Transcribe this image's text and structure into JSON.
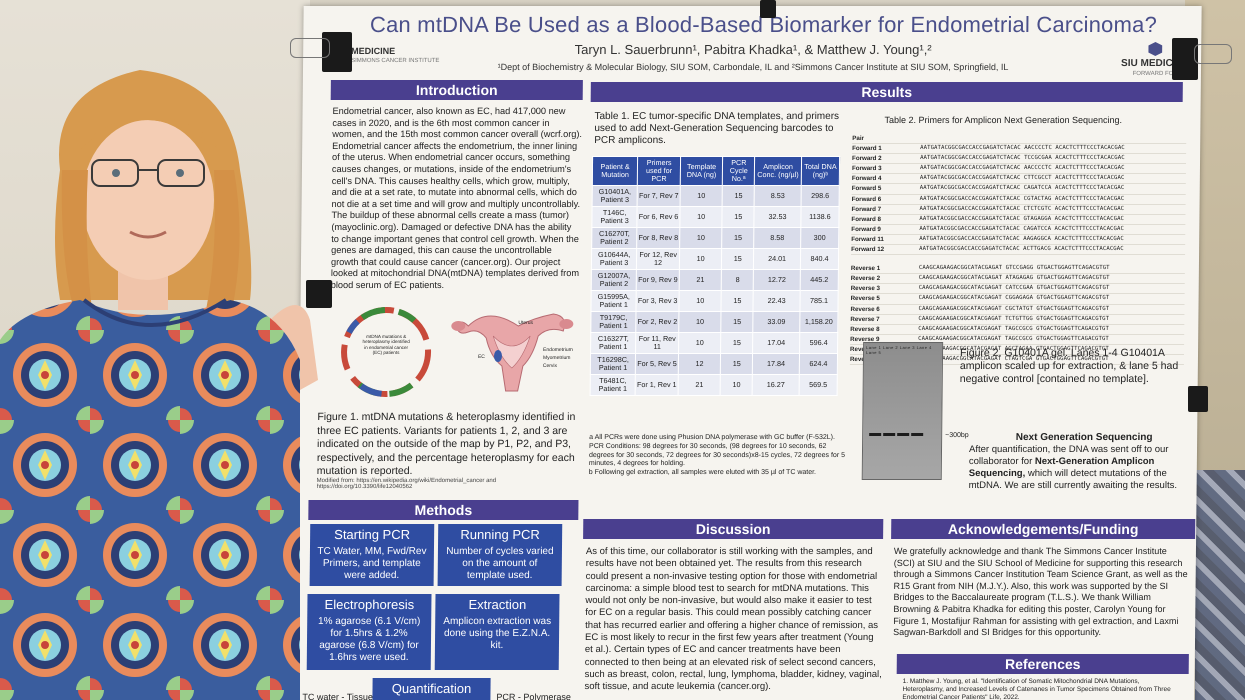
{
  "poster": {
    "title": "Can mtDNA Be Used as a Blood-Based Biomarker for Endometrial Carcinoma?",
    "authors": "Taryn L. Sauerbrunn¹, Pabitra Khadka¹, & Matthew J. Young¹,²",
    "affiliation": "¹Dept of Biochemistry & Molecular Biology, SIU SOM, Carbondale, IL and ²Simmons Cancer Institute at SIU SOM, Springfield, IL",
    "logo_left": "MEDICINE",
    "logo_left_sub": "SIMMONS CANCER INSTITUTE",
    "logo_right": "SIU MEDICINE",
    "logo_right_sub": "FORWARD FOR"
  },
  "introduction": {
    "heading": "Introduction",
    "text": "Endometrial cancer, also known as EC, had 417,000 new cases in 2020, and is the 6th most common cancer in women, and the 15th most common cancer overall (wcrf.org). Endometrial cancer affects the endometrium, the inner lining of the uterus. When endometrial cancer occurs, something causes changes, or mutations, inside of the endometrium's cell's DNA. This causes healthy cells, which grow, multiply, and die at a set rate, to mutate into abnormal cells, which do not die at a set time and will grow and multiply uncontrollably. The buildup of these abnormal cells create a mass (tumor) (mayoclinic.org). Damaged or defective DNA has the ability to change important genes that control cell growth. When the genes are damaged, this can cause the uncontrollable growth that could cause cancer (cancer.org). Our project looked at mitochondrial DNA(mtDNA) templates derived from blood serum of EC patients."
  },
  "figure1": {
    "map_center": "mtDNA mutations & heteroplasmy identified in endometrial cancer (EC) patients",
    "uterus_labels": [
      "Uterus",
      "EC",
      "Endometrium",
      "Myometrium",
      "Cervix"
    ],
    "caption": "Figure 1. mtDNA mutations & heteroplasmy identified in three EC patients. Variants for patients 1, 2, and 3 are indicated on the outside of the map by P1, P2, and P3, respectively, and the percentage heteroplasmy for each mutation is reported.",
    "modified": "Modified from: https://en.wikipedia.org/wiki/Endometrial_cancer and https://doi.org/10.3390/life12040562"
  },
  "methods": {
    "heading": "Methods",
    "boxes": [
      {
        "title": "Starting PCR",
        "body": "TC Water, MM, Fwd/Rev Primers, and template were added."
      },
      {
        "title": "Running PCR",
        "body": "Number of cycles varied on the amount of template used."
      },
      {
        "title": "Electrophoresis",
        "body": "1% agarose (6.1 V/cm) for 1.5hrs & 1.2% agarose (6.8 V/cm) for 1.6hrs were used."
      },
      {
        "title": "Extraction",
        "body": "Amplicon extraction was done using the E.Z.N.A. kit."
      },
      {
        "title": "Quantification",
        "body": ""
      }
    ],
    "foot_left": "TC water - Tissue",
    "foot_right": "PCR - Polymerase"
  },
  "results": {
    "heading": "Results",
    "table1_caption": "Table 1. EC tumor-specific DNA templates, and primers used to add Next-Generation Sequencing barcodes to PCR amplicons.",
    "table1_headers": [
      "Patient & Mutation",
      "Primers used for PCR",
      "Template DNA (ng)",
      "PCR Cycle No.ª",
      "Amplicon Conc. (ng/µl)",
      "Total DNA (ng)ᵇ"
    ],
    "table1_rows": [
      [
        "G10401A, Patient 3",
        "For 7, Rev 7",
        "10",
        "15",
        "8.53",
        "298.6"
      ],
      [
        "T146C, Patient 3",
        "For 6, Rev 6",
        "10",
        "15",
        "32.53",
        "1138.6"
      ],
      [
        "C16270T, Patient 2",
        "For 8, Rev 8",
        "10",
        "15",
        "8.58",
        "300"
      ],
      [
        "G10644A, Patient 3",
        "For 12, Rev 12",
        "10",
        "15",
        "24.01",
        "840.4"
      ],
      [
        "G12007A, Patient 2",
        "For 9, Rev 9",
        "21",
        "8",
        "12.72",
        "445.2"
      ],
      [
        "G15995A, Patient 1",
        "For 3, Rev 3",
        "10",
        "15",
        "22.43",
        "785.1"
      ],
      [
        "T9179C, Patient 1",
        "For 2, Rev 2",
        "10",
        "15",
        "33.09",
        "1,158.20"
      ],
      [
        "C16327T, Patient 1",
        "For 11, Rev 11",
        "10",
        "15",
        "17.04",
        "596.4"
      ],
      [
        "T16298C, Patient 1",
        "For 5, Rev 5",
        "12",
        "15",
        "17.84",
        "624.4"
      ],
      [
        "T6481C, Patient 1",
        "For 1, Rev 1",
        "21",
        "10",
        "16.27",
        "569.5"
      ]
    ],
    "table1_note_a": "a All PCRs were done using Phusion DNA polymerase with GC buffer (F-532L). PCR Conditions: 98 degrees for 30 seconds, (98 degrees for 10 seconds, 62 degrees for 30 seconds, 72 degrees for 30 seconds)x8-15 cycles, 72 degrees for 5 minutes, 4 degrees for holding.",
    "table1_note_b": "b Following gel extraction, all samples were eluted with 35 µl of TC water.",
    "table2_caption": "Table 2. Primers for Amplicon Next Generation Sequencing.",
    "table2_pair": "Pair",
    "table2_forward": [
      [
        "Forward 1",
        "AATGATACGGCGACCACCGAGATCTACAC AACCCCTC ACACTCTTTCCCTACACGAC"
      ],
      [
        "Forward 2",
        "AATGATACGGCGACCACCGAGATCTACAC TCCGCGAA ACACTCTTTCCCTACACGAC"
      ],
      [
        "Forward 3",
        "AATGATACGGCGACCACCGAGATCTACAC AACCCCTC ACACTCTTTCCCTACACGAC"
      ],
      [
        "Forward 4",
        "AATGATACGGCGACCACCGAGATCTACAC CTTCGCCT ACACTCTTTCCCTACACGAC"
      ],
      [
        "Forward 5",
        "AATGATACGGCGACCACCGAGATCTACAC CAGATCCA ACACTCTTTCCCTACACGAC"
      ],
      [
        "Forward 6",
        "AATGATACGGCGACCACCGAGATCTACAC CGTACTAG ACACTCTTTCCCTACACGAC"
      ],
      [
        "Forward 7",
        "AATGATACGGCGACCACCGAGATCTACAC CTCTCGTC ACACTCTTTCCCTACACGAC"
      ],
      [
        "Forward 8",
        "AATGATACGGCGACCACCGAGATCTACAC GTAGAGGA ACACTCTTTCCCTACACGAC"
      ],
      [
        "Forward 9",
        "AATGATACGGCGACCACCGAGATCTACAC CAGATCCA ACACTCTTTCCCTACACGAC"
      ],
      [
        "Forward 11",
        "AATGATACGGCGACCACCGAGATCTACAC AAGAGGCA ACACTCTTTCCCTACACGAC"
      ],
      [
        "Forward 12",
        "AATGATACGGCGACCACCGAGATCTACAC ACTTGACG ACACTCTTTCCCTACACGAC"
      ]
    ],
    "table2_reverse": [
      [
        "Reverse 1",
        "CAAGCAGAAGACGGCATACGAGAT GTCCGAGG GTGACTGGAGTTCAGACGTGT"
      ],
      [
        "Reverse 2",
        "CAAGCAGAAGACGGCATACGAGAT ATAGAGAG GTGACTGGAGTTCAGACGTGT"
      ],
      [
        "Reverse 3",
        "CAAGCAGAAGACGGCATACGAGAT CATCCGAA GTGACTGGAGTTCAGACGTGT"
      ],
      [
        "Reverse 5",
        "CAAGCAGAAGACGGCATACGAGAT CGGAGAGA GTGACTGGAGTTCAGACGTGT"
      ],
      [
        "Reverse 6",
        "CAAGCAGAAGACGGCATACGAGAT CGCTATGT GTGACTGGAGTTCAGACGTGT"
      ],
      [
        "Reverse 7",
        "CAAGCAGAAGACGGCATACGAGAT TCTGTTGG GTGACTGGAGTTCAGACGTGT"
      ],
      [
        "Reverse 8",
        "CAAGCAGAAGACGGCATACGAGAT TAGCCGCG GTGACTGGAGTTCAGACGTGT"
      ],
      [
        "Reverse 9",
        "CAAGCAGAAGACGGCATACGAGAT TAGCCGCG GTGACTGGAGTTCAGACGTGT"
      ],
      [
        "Reverse 11",
        "CAAGCAGAAGACGGCATACGAGAT AGCTAGAA GTGACTGGAGTTCAGACGTGT"
      ],
      [
        "Reverse 12",
        "CAAGCAGAAGACGGCATACGAGAT CTAGTCGA GTGACTGGAGTTCAGACGTGT"
      ]
    ],
    "gel_lanes": "Lane 1 Lane 2 Lane 3 Lane 4 Lane 5",
    "gel_marker": "~300bp",
    "fig2_caption": "Figure 2. G10401A gel. Lanes 1-4 G10401A amplicon scaled up for extraction, & lane 5 had negative control [contained no template].",
    "ngs_heading": "Next Generation Sequencing",
    "ngs_text_1": "After quantification, the DNA was sent off to our collaborator for ",
    "ngs_bold": "Next-Generation Amplicon Sequencing,",
    "ngs_text_2": " which will detect mutations of the mtDNA. We are still currently awaiting the results."
  },
  "discussion": {
    "heading": "Discussion",
    "text": "As of this time, our collaborator is still working with the samples, and results have not been obtained yet. The results from this research could present a non-invasive testing option for those with endometrial carcinoma: a simple blood test to search for mtDNA mutations. This would not only be non-invasive, but would also make it easier to test for EC on a regular basis. This could mean possibly catching cancer that has recurred earlier and offering a higher chance of remission, as EC is most likely to recur in the first few years after treatment (Young et al.). Certain types of EC and cancer treatments have been connected to then being at an elevated risk of select second cancers, such as breast, colon, rectal, lung, lymphoma, bladder, kidney, vaginal, soft tissue, and acute leukemia (cancer.org)."
  },
  "acknowledgements": {
    "heading": "Acknowledgements/Funding",
    "text": "We gratefully acknowledge and thank The Simmons Cancer Institute (SCI) at SIU and the SIU School of Medicine for supporting this research through a Simmons Cancer Institution Team Science Grant, as well as the R15 Grant from NIH (M.J.Y.). Also, this work was supported by the SI Bridges to the Baccalaureate program (T.L.S.). We thank William Browning & Pabitra Khadka for editing this poster, Carolyn Young for Figure 1, Mostafijur Rahman for assisting with gel extraction, and Laxmi Sagwan-Barkdoll and SI Bridges for this opportunity."
  },
  "references": {
    "heading": "References",
    "text": "1. Matthew J. Young, et al. \"Identification of Somatic Mitochondrial DNA Mutations, Heteroplasmy, and Increased Levels of Catenanes in Tumor Specimens Obtained from Three Endometrial Cancer Patients\" Life, 2022."
  },
  "colors": {
    "section_header": "#4a3f8f",
    "method_box": "#2f4da2",
    "title": "#4a4f8a"
  }
}
